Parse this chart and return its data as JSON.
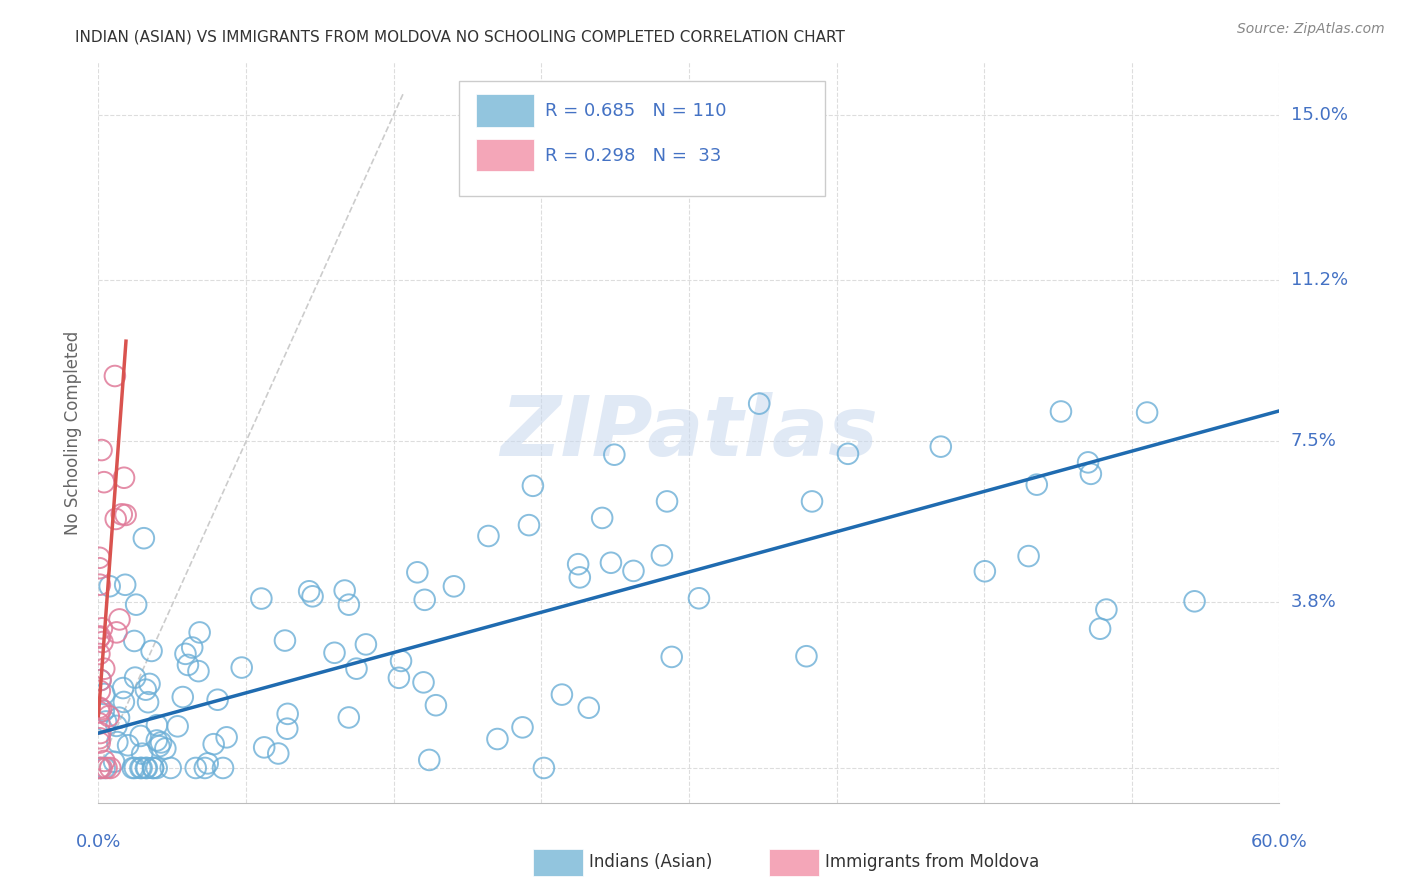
{
  "title": "INDIAN (ASIAN) VS IMMIGRANTS FROM MOLDOVA NO SCHOOLING COMPLETED CORRELATION CHART",
  "source": "Source: ZipAtlas.com",
  "ylabel": "No Schooling Completed",
  "xlim": [
    0.0,
    0.6
  ],
  "ylim": [
    -0.008,
    0.162
  ],
  "ytick_positions": [
    0.0,
    0.038,
    0.075,
    0.112,
    0.15
  ],
  "ytick_labels": [
    "",
    "3.8%",
    "7.5%",
    "11.2%",
    "15.0%"
  ],
  "xtick_positions": [
    0.0,
    0.075,
    0.15,
    0.225,
    0.3,
    0.375,
    0.45,
    0.525,
    0.6
  ],
  "blue_color": "#92c5de",
  "blue_edge_color": "#6baed6",
  "pink_color": "#f4a6b8",
  "pink_edge_color": "#e07a99",
  "line_blue_color": "#1f6bb0",
  "line_pink_color": "#d9534f",
  "diagonal_color": "#cccccc",
  "legend_R_blue": "0.685",
  "legend_N_blue": "110",
  "legend_R_pink": "0.298",
  "legend_N_pink": "33",
  "watermark": "ZIPatlas",
  "background_color": "#ffffff",
  "grid_color": "#dddddd",
  "title_color": "#333333",
  "axis_label_color": "#4472c4",
  "blue_line_x0": 0.0,
  "blue_line_x1": 0.6,
  "blue_line_y0": 0.008,
  "blue_line_y1": 0.082,
  "pink_line_x0": 0.0,
  "pink_line_x1": 0.014,
  "pink_line_y0": 0.012,
  "pink_line_y1": 0.098,
  "diag_max": 0.155
}
